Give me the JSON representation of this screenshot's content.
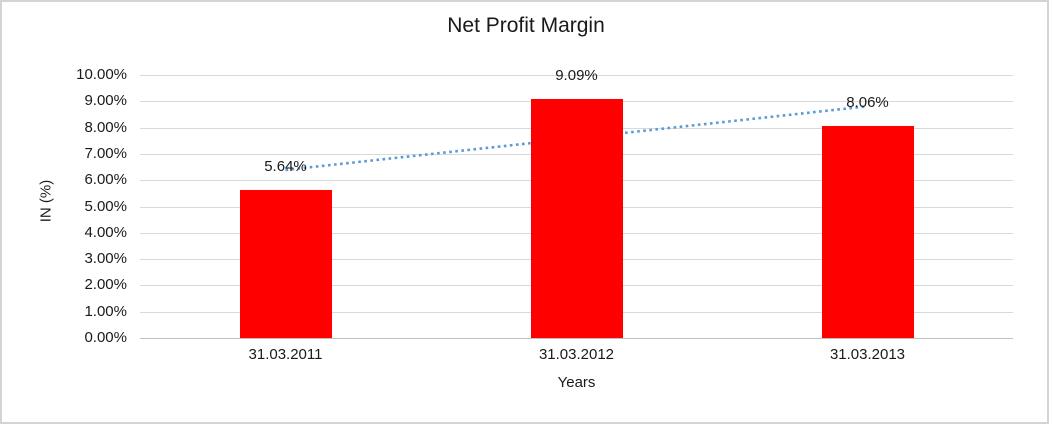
{
  "chart_data": {
    "type": "bar",
    "title": "Net Profit Margin",
    "categories": [
      "31.03.2011",
      "31.03.2012",
      "31.03.2013"
    ],
    "values": [
      5.64,
      9.09,
      8.06
    ],
    "data_labels": [
      "5.64%",
      "9.09%",
      "8.06%"
    ],
    "xlabel": "Years",
    "ylabel": "IN (%)",
    "ylim": [
      0,
      10
    ],
    "ytick_step": 1,
    "ytick_labels": [
      "0.00%",
      "1.00%",
      "2.00%",
      "3.00%",
      "4.00%",
      "5.00%",
      "6.00%",
      "7.00%",
      "8.00%",
      "9.00%",
      "10.00%"
    ],
    "grid": true,
    "legend": "none",
    "bar_color": "#FF0000",
    "gridline_color": "#D9D9D9",
    "trendline": {
      "type": "linear",
      "style": "dotted",
      "color": "#5B9BD5",
      "start_value": 6.39,
      "end_value": 8.81
    }
  }
}
